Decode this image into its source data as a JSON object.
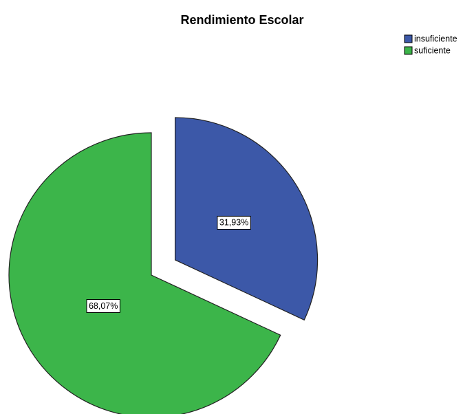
{
  "chart_data": {
    "type": "pie",
    "title": "Rendimiento Escolar",
    "categories": [
      "insuficiente",
      "suficiente"
    ],
    "values": [
      31.93,
      68.07
    ],
    "value_labels": [
      "31,93%",
      "68,07%"
    ],
    "colors": [
      "#3c58a8",
      "#3cb54a"
    ],
    "legend": "top-right"
  }
}
